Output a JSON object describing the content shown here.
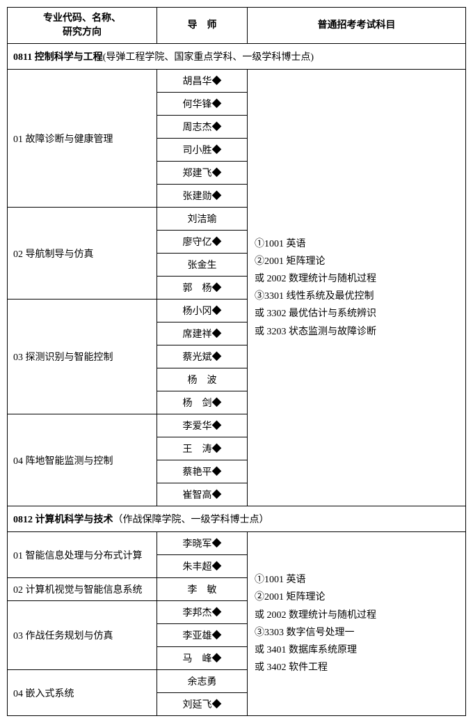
{
  "headers": {
    "direction": "专业代码、名称、\n研究方向",
    "advisor": "导　师",
    "subjects": "普通招考考试科目"
  },
  "sections": [
    {
      "title_bold": "0811 控制科学与工程",
      "title_normal": "(导弹工程学院、国家重点学科、一级学科博士点)",
      "subjects_lines": [
        "①1001 英语",
        "②2001 矩阵理论",
        "或 2002 数理统计与随机过程",
        "③3301 线性系统及最优控制",
        "或 3302 最优估计与系统辨识",
        "或 3203 状态监测与故障诊断"
      ],
      "directions": [
        {
          "label": "01 故障诊断与健康管理",
          "advisors": [
            "胡昌华◆",
            "何华锋◆",
            "周志杰◆",
            "司小胜◆",
            "郑建飞◆",
            "张建勋◆"
          ]
        },
        {
          "label": "02 导航制导与仿真",
          "advisors": [
            "刘洁瑜",
            "廖守亿◆",
            "张金生",
            "郭　杨◆"
          ]
        },
        {
          "label": "03 探测识别与智能控制",
          "advisors": [
            "杨小冈◆",
            "席建祥◆",
            "蔡光斌◆",
            "杨　波",
            "杨　剑◆"
          ]
        },
        {
          "label": "04 阵地智能监测与控制",
          "advisors": [
            "李爱华◆",
            "王　涛◆",
            "蔡艳平◆",
            "崔智高◆"
          ]
        }
      ]
    },
    {
      "title_bold": "0812 计算机科学与技术",
      "title_normal": "（作战保障学院、一级学科博士点）",
      "subjects_lines": [
        "①1001 英语",
        "②2001 矩阵理论",
        "或 2002 数理统计与随机过程",
        "③3303 数字信号处理一",
        "或 3401 数据库系统原理",
        "或 3402 软件工程"
      ],
      "directions": [
        {
          "label": "01 智能信息处理与分布式计算",
          "advisors": [
            "李晓军◆",
            "朱丰超◆"
          ]
        },
        {
          "label": "02 计算机视觉与智能信息系统",
          "advisors": [
            "李　敏"
          ]
        },
        {
          "label": "03 作战任务规划与仿真",
          "advisors": [
            "李邦杰◆",
            "李亚雄◆",
            "马　峰◆"
          ]
        },
        {
          "label": "04 嵌入式系统",
          "advisors": [
            "余志勇",
            "刘延飞◆"
          ]
        }
      ]
    }
  ]
}
